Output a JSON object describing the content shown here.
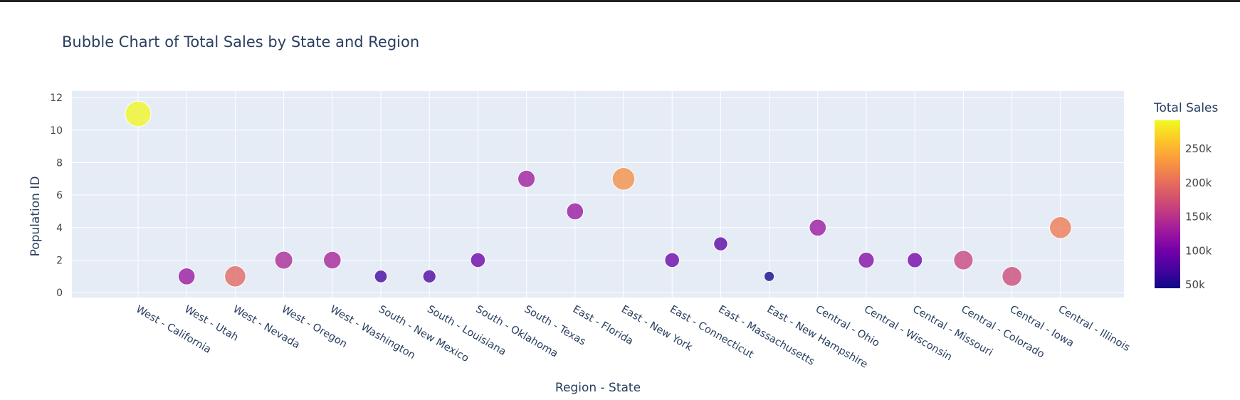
{
  "chart_data": {
    "type": "scatter",
    "title": "Bubble Chart of Total Sales by State and Region",
    "xlabel": "Region - State",
    "ylabel": "Population ID",
    "ylim": [
      -0.3,
      12.4
    ],
    "yticks": [
      0,
      2,
      4,
      6,
      8,
      10,
      12
    ],
    "categories": [
      "West - California",
      "West - Utah",
      "West - Nevada",
      "West - Oregon",
      "West - Washington",
      "South - New Mexico",
      "South - Louisiana",
      "South - Oklahoma",
      "South - Texas",
      "East - Florida",
      "East - New York",
      "East - Connecticut",
      "East - Massachusetts",
      "East - New Hampshire",
      "Central - Ohio",
      "Central - Wisconsin",
      "Central - Missouri",
      "Central - Colorado",
      "Central - Iowa",
      "Central - Illinois"
    ],
    "values": [
      11,
      1,
      1,
      2,
      2,
      1,
      1,
      2,
      7,
      5,
      7,
      2,
      3,
      1,
      4,
      2,
      2,
      2,
      1,
      4
    ],
    "size_values": [
      290000,
      125000,
      195000,
      140000,
      135000,
      70000,
      75000,
      95000,
      130000,
      125000,
      225000,
      95000,
      85000,
      45000,
      125000,
      110000,
      100000,
      165000,
      170000,
      210000
    ],
    "grid": true,
    "legend": "right",
    "colorbar": {
      "title": "Total Sales",
      "ticks": [
        "50k",
        "100k",
        "150k",
        "200k",
        "250k"
      ],
      "tick_values": [
        50000,
        100000,
        150000,
        200000,
        250000
      ],
      "range": [
        45000,
        292000
      ],
      "colorscale": [
        "#0d0887",
        "#46039f",
        "#7201a8",
        "#9c179e",
        "#bd3786",
        "#d8576b",
        "#ed7953",
        "#fb9f3a",
        "#fdca26",
        "#f0f921"
      ]
    },
    "colors": {
      "plot_bg": "#e5ecf6",
      "grid": "#ffffff",
      "text": "#2a3f5f",
      "tick_text": "#444444"
    }
  }
}
